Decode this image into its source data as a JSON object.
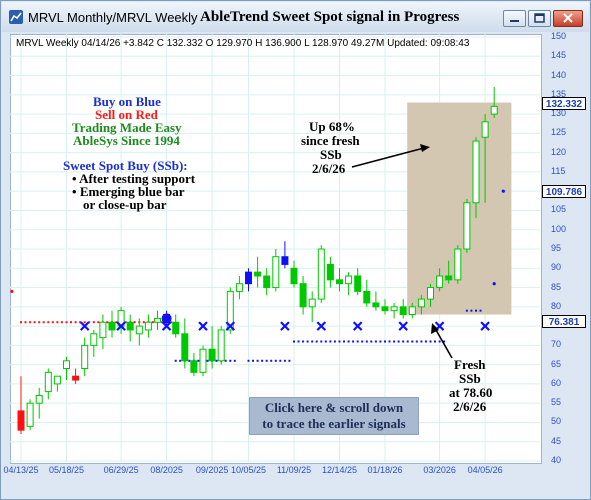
{
  "window": {
    "title": "MRVL  Monthly/MRVL  Weekly"
  },
  "chart_title": "AbleTrend Sweet Spot signal in Progress",
  "info_line": "MRVL  Weekly 04/14/26 +3.842 C 132.332 O 129.970 H 136.900 L 128.970 49.27M Updated: 09:08:43",
  "legend": {
    "buy": "Buy on Blue",
    "sell": "Sell on Red",
    "line3": "Trading Made Easy",
    "line4": "AbleSys Since 1994",
    "ssb_title": "Sweet Spot Buy (SSb):",
    "bullet1": "After testing support",
    "bullet2": "Emerging blue bar",
    "bullet3": "or close-up bar"
  },
  "annotation_up": {
    "line1": "Up 68%",
    "line2": "since fresh",
    "line3": "SSb",
    "line4": "2/6/26"
  },
  "annotation_fresh": {
    "line1": "Fresh",
    "line2": "SSb",
    "line3": "at 78.60",
    "line4": "2/6/26"
  },
  "scroll_note": {
    "line1": "Click here & scroll down",
    "line2": "to trace the earlier signals"
  },
  "price_labels": {
    "current": "132.332",
    "level_mid": "109.786",
    "level_low": "76.381"
  },
  "colors": {
    "up": "#00c800",
    "down": "#00a000",
    "blue": "#1010ff",
    "red": "#ff1010",
    "axis": "#2b4fc6",
    "highlight": "#d3c7b1"
  },
  "chart_data": {
    "type": "candlestick",
    "ylim": [
      40,
      150
    ],
    "yticks": [
      40,
      45,
      50,
      55,
      60,
      65,
      70,
      75,
      80,
      85,
      90,
      95,
      100,
      105,
      110,
      115,
      120,
      125,
      130,
      135,
      140,
      145,
      150
    ],
    "x_labels": [
      {
        "label": "04/13/25",
        "i": 0
      },
      {
        "label": "05/18/25",
        "i": 5
      },
      {
        "label": "06/29/25",
        "i": 11
      },
      {
        "label": "08/2025",
        "i": 16
      },
      {
        "label": "09/2025",
        "i": 21
      },
      {
        "label": "10/05/25",
        "i": 25
      },
      {
        "label": "11/09/25",
        "i": 30
      },
      {
        "label": "12/14/25",
        "i": 35
      },
      {
        "label": "01/18/26",
        "i": 40
      },
      {
        "label": "03/2026",
        "i": 46
      },
      {
        "label": "04/05/26",
        "i": 51
      }
    ],
    "bars": [
      {
        "o": 53,
        "h": 62,
        "l": 47,
        "c": 48,
        "color": "red"
      },
      {
        "o": 49,
        "h": 56,
        "l": 48,
        "c": 55,
        "color": "green"
      },
      {
        "o": 55,
        "h": 59,
        "l": 51,
        "c": 57,
        "color": "green"
      },
      {
        "o": 58,
        "h": 64,
        "l": 56,
        "c": 63,
        "color": "green"
      },
      {
        "o": 60,
        "h": 62,
        "l": 58,
        "c": 62,
        "color": "green"
      },
      {
        "o": 64,
        "h": 67,
        "l": 61,
        "c": 66,
        "color": "green"
      },
      {
        "o": 62,
        "h": 64,
        "l": 60,
        "c": 61,
        "color": "red"
      },
      {
        "o": 64,
        "h": 72,
        "l": 62,
        "c": 70,
        "color": "green"
      },
      {
        "o": 70,
        "h": 74,
        "l": 67,
        "c": 73,
        "color": "green"
      },
      {
        "o": 72,
        "h": 78,
        "l": 69,
        "c": 76,
        "color": "green"
      },
      {
        "o": 76,
        "h": 79,
        "l": 72,
        "c": 74,
        "color": "green"
      },
      {
        "o": 75,
        "h": 80,
        "l": 73,
        "c": 79,
        "color": "green"
      },
      {
        "o": 76,
        "h": 78,
        "l": 71,
        "c": 74,
        "color": "green"
      },
      {
        "o": 73,
        "h": 77,
        "l": 70,
        "c": 75,
        "color": "green"
      },
      {
        "o": 74,
        "h": 78,
        "l": 72,
        "c": 76,
        "color": "green"
      },
      {
        "o": 76,
        "h": 79,
        "l": 74,
        "c": 77,
        "color": "green"
      },
      {
        "o": 77,
        "h": 79,
        "l": 75,
        "c": 78,
        "color": "blue"
      },
      {
        "o": 76,
        "h": 78,
        "l": 72,
        "c": 73,
        "color": "green"
      },
      {
        "o": 73,
        "h": 77,
        "l": 64,
        "c": 66,
        "color": "green"
      },
      {
        "o": 66,
        "h": 68,
        "l": 62,
        "c": 63,
        "color": "green"
      },
      {
        "o": 63,
        "h": 70,
        "l": 62,
        "c": 69,
        "color": "green"
      },
      {
        "o": 69,
        "h": 75,
        "l": 64,
        "c": 66,
        "color": "green"
      },
      {
        "o": 66,
        "h": 75,
        "l": 65,
        "c": 74,
        "color": "green"
      },
      {
        "o": 74,
        "h": 85,
        "l": 73,
        "c": 84,
        "color": "green"
      },
      {
        "o": 84,
        "h": 88,
        "l": 82,
        "c": 86,
        "color": "green"
      },
      {
        "o": 86,
        "h": 90,
        "l": 84,
        "c": 89,
        "color": "blue"
      },
      {
        "o": 89,
        "h": 93,
        "l": 85,
        "c": 88,
        "color": "green"
      },
      {
        "o": 88,
        "h": 90,
        "l": 83,
        "c": 85,
        "color": "green"
      },
      {
        "o": 85,
        "h": 95,
        "l": 84,
        "c": 93,
        "color": "green"
      },
      {
        "o": 93,
        "h": 97,
        "l": 90,
        "c": 91,
        "color": "blue"
      },
      {
        "o": 90,
        "h": 92,
        "l": 85,
        "c": 86,
        "color": "green"
      },
      {
        "o": 86,
        "h": 88,
        "l": 78,
        "c": 80,
        "color": "green"
      },
      {
        "o": 80,
        "h": 84,
        "l": 76,
        "c": 82,
        "color": "green"
      },
      {
        "o": 82,
        "h": 96,
        "l": 81,
        "c": 95,
        "color": "green"
      },
      {
        "o": 91,
        "h": 93,
        "l": 85,
        "c": 87,
        "color": "green"
      },
      {
        "o": 87,
        "h": 90,
        "l": 84,
        "c": 86,
        "color": "green"
      },
      {
        "o": 86,
        "h": 89,
        "l": 83,
        "c": 88,
        "color": "green"
      },
      {
        "o": 88,
        "h": 90,
        "l": 83,
        "c": 84,
        "color": "green"
      },
      {
        "o": 84,
        "h": 87,
        "l": 80,
        "c": 81,
        "color": "green"
      },
      {
        "o": 81,
        "h": 84,
        "l": 79,
        "c": 80,
        "color": "green"
      },
      {
        "o": 80,
        "h": 82,
        "l": 78,
        "c": 79,
        "color": "green"
      },
      {
        "o": 79,
        "h": 81,
        "l": 77,
        "c": 80,
        "color": "green"
      },
      {
        "o": 80,
        "h": 82,
        "l": 77,
        "c": 78,
        "color": "green"
      },
      {
        "o": 78,
        "h": 81,
        "l": 77,
        "c": 80,
        "color": "green"
      },
      {
        "o": 80,
        "h": 83,
        "l": 78,
        "c": 82,
        "color": "green"
      },
      {
        "o": 82,
        "h": 86,
        "l": 80,
        "c": 85,
        "color": "green"
      },
      {
        "o": 85,
        "h": 90,
        "l": 84,
        "c": 88,
        "color": "green"
      },
      {
        "o": 88,
        "h": 92,
        "l": 86,
        "c": 87,
        "color": "green"
      },
      {
        "o": 87,
        "h": 96,
        "l": 86,
        "c": 95,
        "color": "green"
      },
      {
        "o": 95,
        "h": 108,
        "l": 94,
        "c": 107,
        "color": "green"
      },
      {
        "o": 107,
        "h": 124,
        "l": 103,
        "c": 123,
        "color": "green"
      },
      {
        "o": 124,
        "h": 130,
        "l": 107,
        "c": 128,
        "color": "green"
      },
      {
        "o": 130,
        "h": 137,
        "l": 129,
        "c": 132,
        "color": "green"
      }
    ],
    "ssb_x_marks": [
      {
        "i": 7,
        "y": 75
      },
      {
        "i": 11,
        "y": 75
      },
      {
        "i": 16,
        "y": 75
      },
      {
        "i": 20,
        "y": 75
      },
      {
        "i": 23,
        "y": 75
      },
      {
        "i": 29,
        "y": 75
      },
      {
        "i": 33,
        "y": 75
      },
      {
        "i": 37,
        "y": 75
      },
      {
        "i": 42,
        "y": 75
      },
      {
        "i": 46,
        "y": 75
      },
      {
        "i": 51,
        "y": 75
      }
    ],
    "dotted_levels": [
      {
        "from": 0,
        "to": 16,
        "y": 76,
        "color": "red"
      },
      {
        "from": 17,
        "to": 23,
        "y": 66,
        "color": "blue"
      },
      {
        "from": 25,
        "to": 29,
        "y": 66,
        "color": "blue"
      },
      {
        "from": 30,
        "to": 46,
        "y": 71,
        "color": "blue"
      },
      {
        "from": 49,
        "to": 50,
        "y": 79,
        "color": "blue"
      }
    ],
    "single_dots": [
      {
        "i": -1,
        "y": 84,
        "color": "red"
      },
      {
        "i": 52,
        "y": 86,
        "color": "blue"
      },
      {
        "i": 53,
        "y": 110,
        "color": "blue"
      }
    ],
    "highlight": {
      "from": 42,
      "to": 54,
      "ymin": 78,
      "ymax": 133
    }
  }
}
